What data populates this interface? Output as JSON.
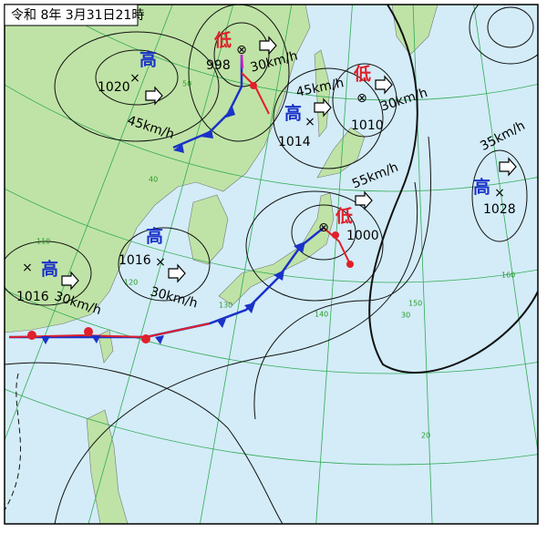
{
  "title": "令和 8年 3月31日21時",
  "systems": [
    {
      "kind": "高",
      "pressure": "1020",
      "speed": "45km/h"
    },
    {
      "kind": "低",
      "pressure": "998",
      "speed": "30km/h"
    },
    {
      "kind": "高",
      "pressure": "1014",
      "speed": "45km/h"
    },
    {
      "kind": "低",
      "pressure": "1010",
      "speed": "30km/h"
    },
    {
      "kind": "高",
      "pressure": "1028",
      "speed": "35km/h"
    },
    {
      "kind": "低",
      "pressure": "1000",
      "speed": "55km/h"
    },
    {
      "kind": "高",
      "pressure": "1016",
      "speed": "30km/h"
    },
    {
      "kind": "高",
      "pressure": "1016",
      "speed": "30km/h"
    }
  ],
  "grid_labels": [
    "50",
    "40",
    "30",
    "20",
    "110",
    "120",
    "130",
    "140",
    "150",
    "160"
  ]
}
